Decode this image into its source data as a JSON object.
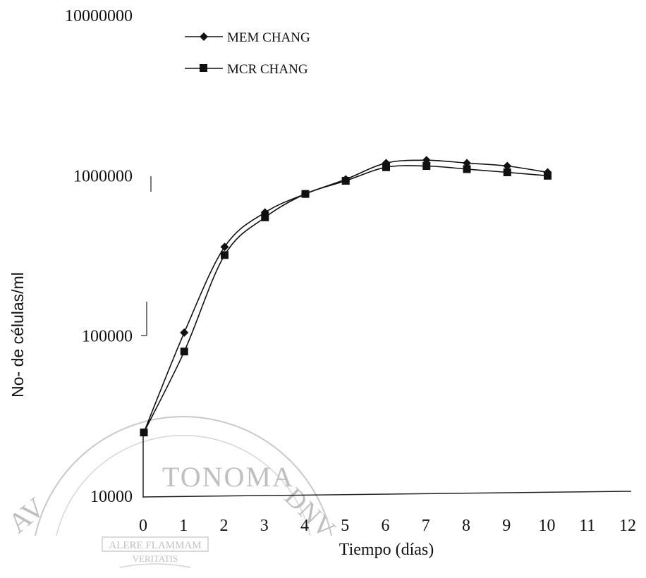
{
  "chart_data": {
    "type": "line",
    "xlabel": "Tiempo (días)",
    "ylabel": "No- de células/ml",
    "x_ticks": [
      "0",
      "1",
      "2",
      "3",
      "4",
      "5",
      "6",
      "7",
      "8",
      "9",
      "10",
      "11",
      "12"
    ],
    "y_ticks": [
      "10000",
      "100000",
      "1000000",
      "10000000"
    ],
    "xlim": [
      0,
      12
    ],
    "ylim": [
      10000,
      10000000
    ],
    "y_scale": "log",
    "grid": false,
    "legend_position": "top-left",
    "series": [
      {
        "name": "MEM CHANG",
        "marker": "diamond",
        "x": [
          0,
          1,
          2,
          3,
          4,
          5,
          6,
          7,
          8,
          9,
          10
        ],
        "y": [
          25000,
          105000,
          360000,
          590000,
          770000,
          950000,
          1200000,
          1250000,
          1200000,
          1150000,
          1050000
        ]
      },
      {
        "name": "MCR CHANG",
        "marker": "square",
        "x": [
          0,
          1,
          2,
          3,
          4,
          5,
          6,
          7,
          8,
          9,
          10
        ],
        "y": [
          25000,
          80000,
          320000,
          550000,
          770000,
          930000,
          1130000,
          1150000,
          1100000,
          1050000,
          1000000
        ]
      }
    ]
  },
  "watermark": {
    "top_text": "TONOMA",
    "left_letters": "AV",
    "right_letters": "DNV",
    "banner": "ALERE FLAMMAM",
    "motto": "VERITATIS"
  }
}
